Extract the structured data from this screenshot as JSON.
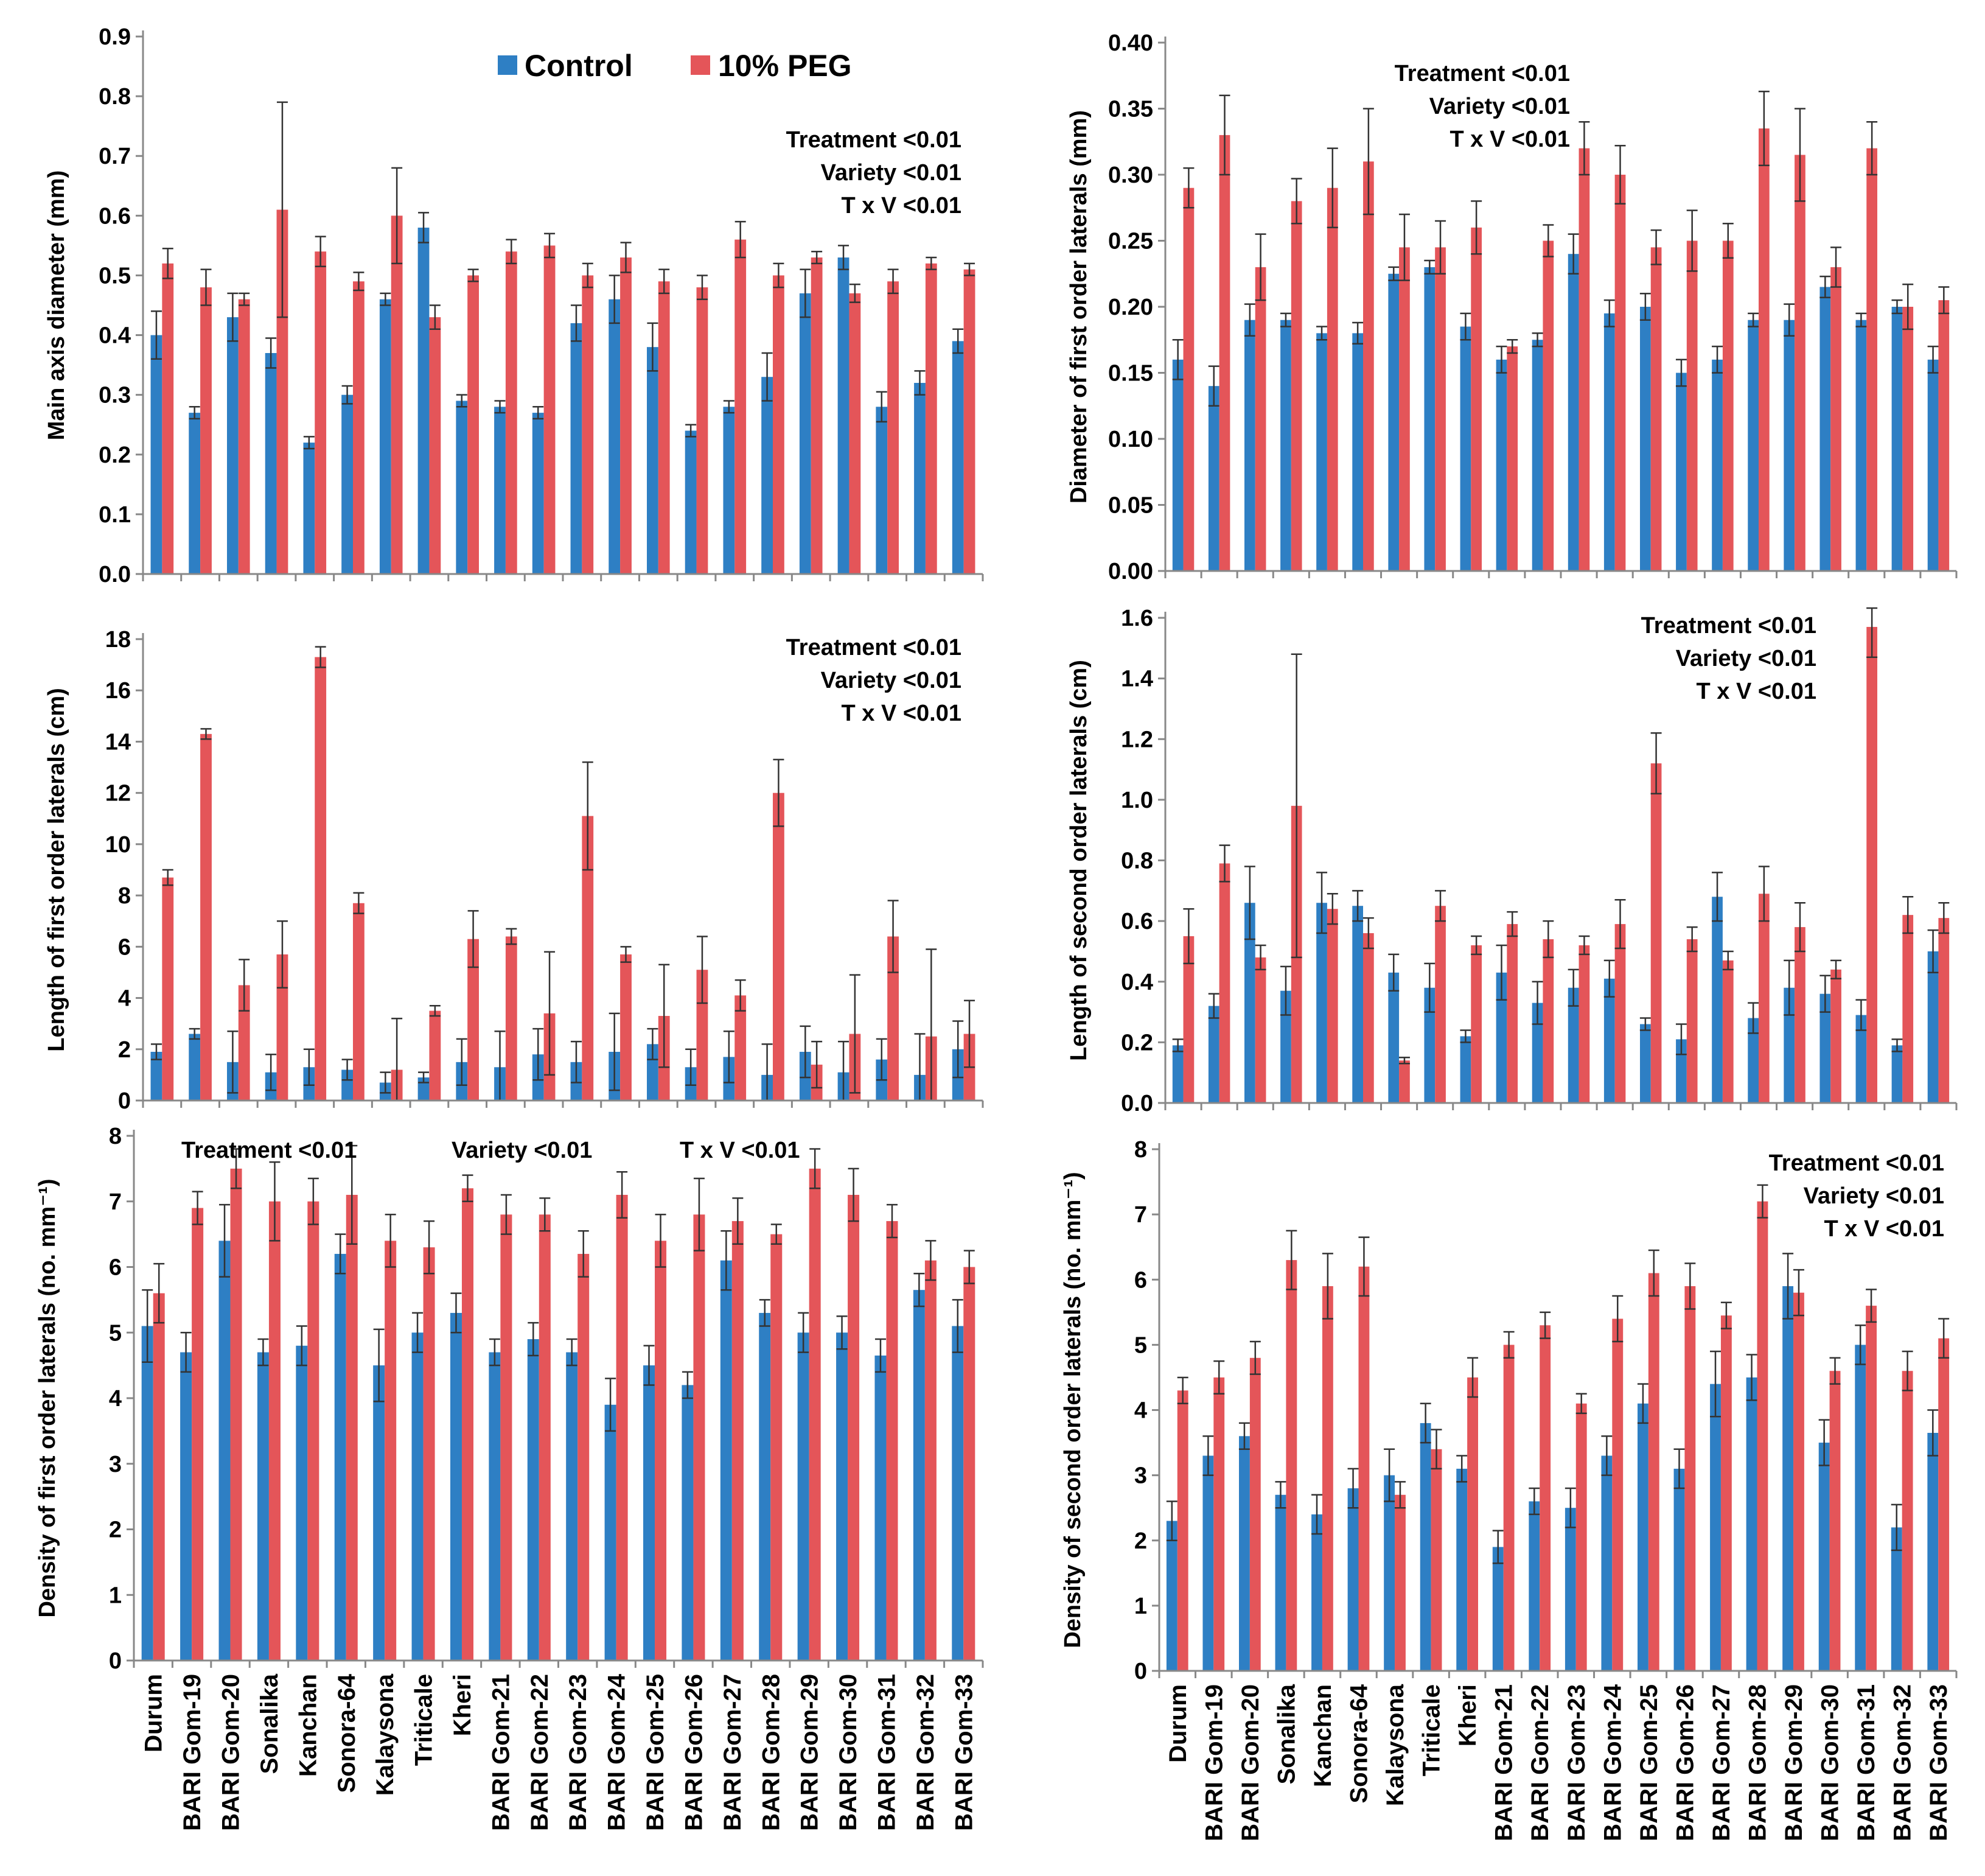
{
  "colors": {
    "control": "#2e7fc4",
    "peg": "#e45559",
    "axis": "#888888",
    "error": "#333333"
  },
  "legend": {
    "control": "Control",
    "peg": "10% PEG"
  },
  "chart_data": [
    {
      "type": "bar",
      "panel": "top-left",
      "ylabel": "Main axis diameter (mm)",
      "ylim": [
        0,
        0.9
      ],
      "yticks": [
        "0.0",
        "0.1",
        "0.2",
        "0.3",
        "0.4",
        "0.5",
        "0.6",
        "0.7",
        "0.8",
        "0.9"
      ],
      "categories": [
        "Durum",
        "BARI Gom-19",
        "BARI Gom-20",
        "Sonalika",
        "Kanchan",
        "Sonora-64",
        "Kalaysona",
        "Triticale",
        "Kheri",
        "BARI Gom-21",
        "BARI Gom-22",
        "BARI Gom-23",
        "BARI Gom-24",
        "BARI Gom-25",
        "BARI Gom-26",
        "BARI Gom-27",
        "BARI Gom-28",
        "BARI Gom-29",
        "BARI Gom-30",
        "BARI Gom-31",
        "BARI Gom-32",
        "BARI Gom-33"
      ],
      "stats": [
        "Treatment <0.01",
        "Variety <0.01",
        "T x V <0.01"
      ],
      "stats_position": "top-right",
      "series": [
        {
          "name": "Control",
          "values": [
            0.4,
            0.27,
            0.43,
            0.37,
            0.22,
            0.3,
            0.46,
            0.58,
            0.29,
            0.28,
            0.27,
            0.42,
            0.46,
            0.38,
            0.24,
            0.28,
            0.33,
            0.47,
            0.53,
            0.28,
            0.32,
            0.39
          ],
          "errors": [
            0.04,
            0.01,
            0.04,
            0.025,
            0.01,
            0.015,
            0.01,
            0.025,
            0.01,
            0.01,
            0.01,
            0.03,
            0.04,
            0.04,
            0.01,
            0.01,
            0.04,
            0.04,
            0.02,
            0.025,
            0.02,
            0.02
          ]
        },
        {
          "name": "10% PEG",
          "values": [
            0.52,
            0.48,
            0.46,
            0.61,
            0.54,
            0.49,
            0.6,
            0.43,
            0.5,
            0.54,
            0.55,
            0.5,
            0.53,
            0.49,
            0.48,
            0.56,
            0.5,
            0.53,
            0.47,
            0.49,
            0.52,
            0.51
          ],
          "errors": [
            0.025,
            0.03,
            0.01,
            0.18,
            0.025,
            0.015,
            0.08,
            0.02,
            0.01,
            0.02,
            0.02,
            0.02,
            0.025,
            0.02,
            0.02,
            0.03,
            0.02,
            0.01,
            0.015,
            0.02,
            0.01,
            0.01
          ]
        }
      ]
    },
    {
      "type": "bar",
      "panel": "top-right",
      "ylabel": "Diameter of first order laterals (mm)",
      "ylim": [
        0,
        0.4
      ],
      "yticks": [
        "0.00",
        "0.05",
        "0.10",
        "0.15",
        "0.20",
        "0.25",
        "0.30",
        "0.35",
        "0.40"
      ],
      "categories": [
        "Durum",
        "BARI Gom-19",
        "BARI Gom-20",
        "Sonalika",
        "Kanchan",
        "Sonora-64",
        "Kalaysona",
        "Triticale",
        "Kheri",
        "BARI Gom-21",
        "BARI Gom-22",
        "BARI Gom-23",
        "BARI Gom-24",
        "BARI Gom-25",
        "BARI Gom-26",
        "BARI Gom-27",
        "BARI Gom-28",
        "BARI Gom-29",
        "BARI Gom-30",
        "BARI Gom-31",
        "BARI Gom-32",
        "BARI Gom-33"
      ],
      "stats": [
        "Treatment <0.01",
        "Variety <0.01",
        "T x V <0.01"
      ],
      "stats_position": "top-center",
      "series": [
        {
          "name": "Control",
          "values": [
            0.16,
            0.14,
            0.19,
            0.19,
            0.18,
            0.18,
            0.225,
            0.23,
            0.185,
            0.16,
            0.175,
            0.24,
            0.195,
            0.2,
            0.15,
            0.16,
            0.19,
            0.19,
            0.215,
            0.19,
            0.2,
            0.16
          ],
          "errors": [
            0.015,
            0.015,
            0.012,
            0.005,
            0.005,
            0.008,
            0.005,
            0.005,
            0.01,
            0.01,
            0.005,
            0.015,
            0.01,
            0.01,
            0.01,
            0.01,
            0.005,
            0.012,
            0.008,
            0.005,
            0.005,
            0.01
          ]
        },
        {
          "name": "10% PEG",
          "values": [
            0.29,
            0.33,
            0.23,
            0.28,
            0.29,
            0.31,
            0.245,
            0.245,
            0.26,
            0.17,
            0.25,
            0.32,
            0.3,
            0.245,
            0.25,
            0.25,
            0.335,
            0.315,
            0.23,
            0.32,
            0.2,
            0.205
          ],
          "errors": [
            0.015,
            0.03,
            0.025,
            0.017,
            0.03,
            0.04,
            0.025,
            0.02,
            0.02,
            0.005,
            0.012,
            0.02,
            0.022,
            0.013,
            0.023,
            0.013,
            0.028,
            0.035,
            0.015,
            0.02,
            0.017,
            0.01
          ]
        }
      ]
    },
    {
      "type": "bar",
      "panel": "middle-left",
      "ylabel": "Length of first order laterals (cm)",
      "ylim": [
        0,
        18
      ],
      "yticks": [
        "0",
        "2",
        "4",
        "6",
        "8",
        "10",
        "12",
        "14",
        "16",
        "18"
      ],
      "categories": [
        "Durum",
        "BARI Gom-19",
        "BARI Gom-20",
        "Sonalika",
        "Kanchan",
        "Sonora-64",
        "Kalaysona",
        "Triticale",
        "Kheri",
        "BARI Gom-21",
        "BARI Gom-22",
        "BARI Gom-23",
        "BARI Gom-24",
        "BARI Gom-25",
        "BARI Gom-26",
        "BARI Gom-27",
        "BARI Gom-28",
        "BARI Gom-29",
        "BARI Gom-30",
        "BARI Gom-31",
        "BARI Gom-32",
        "BARI Gom-33"
      ],
      "stats": [
        "Treatment <0.01",
        "Variety <0.01",
        "T x V <0.01"
      ],
      "stats_position": "top-right",
      "series": [
        {
          "name": "Control",
          "values": [
            1.9,
            2.6,
            1.5,
            1.1,
            1.3,
            1.2,
            0.7,
            0.9,
            1.5,
            1.3,
            1.8,
            1.5,
            1.9,
            2.2,
            1.3,
            1.7,
            1.0,
            1.9,
            1.1,
            1.6,
            1.0,
            2.0
          ],
          "errors": [
            0.3,
            0.2,
            1.2,
            0.7,
            0.7,
            0.4,
            0.4,
            0.2,
            0.9,
            1.4,
            1.0,
            0.8,
            1.5,
            0.6,
            0.7,
            1.0,
            1.2,
            1.0,
            1.2,
            0.8,
            1.6,
            1.1
          ]
        },
        {
          "name": "10% PEG",
          "values": [
            8.7,
            14.3,
            4.5,
            5.7,
            17.3,
            7.7,
            1.2,
            3.5,
            6.3,
            6.4,
            3.4,
            11.1,
            5.7,
            3.3,
            5.1,
            4.1,
            12.0,
            1.4,
            2.6,
            6.4,
            2.5,
            2.6
          ],
          "errors": [
            0.3,
            0.2,
            1.0,
            1.3,
            0.4,
            0.4,
            2.0,
            0.2,
            1.1,
            0.3,
            2.4,
            2.1,
            0.3,
            2.0,
            1.3,
            0.6,
            1.3,
            0.9,
            2.3,
            1.4,
            3.4,
            1.3
          ]
        }
      ]
    },
    {
      "type": "bar",
      "panel": "middle-right",
      "ylabel": "Length of second order laterals (cm)",
      "ylim": [
        0,
        1.6
      ],
      "yticks": [
        "0.0",
        "0.2",
        "0.4",
        "0.6",
        "0.8",
        "1.0",
        "1.2",
        "1.4",
        "1.6"
      ],
      "categories": [
        "Durum",
        "BARI Gom-19",
        "BARI Gom-20",
        "Sonalika",
        "Kanchan",
        "Sonora-64",
        "Kalaysona",
        "Triticale",
        "Kheri",
        "BARI Gom-21",
        "BARI Gom-22",
        "BARI Gom-23",
        "BARI Gom-24",
        "BARI Gom-25",
        "BARI Gom-26",
        "BARI Gom-27",
        "BARI Gom-28",
        "BARI Gom-29",
        "BARI Gom-30",
        "BARI Gom-31",
        "BARI Gom-32",
        "BARI Gom-33"
      ],
      "stats": [
        "Treatment <0.01",
        "Variety <0.01",
        "T x V <0.01"
      ],
      "stats_position": "top-right",
      "series": [
        {
          "name": "Control",
          "values": [
            0.19,
            0.32,
            0.66,
            0.37,
            0.66,
            0.65,
            0.43,
            0.38,
            0.22,
            0.43,
            0.33,
            0.38,
            0.41,
            0.26,
            0.21,
            0.68,
            0.28,
            0.38,
            0.36,
            0.29,
            0.19,
            0.5
          ],
          "errors": [
            0.02,
            0.04,
            0.12,
            0.08,
            0.1,
            0.05,
            0.06,
            0.08,
            0.02,
            0.09,
            0.07,
            0.06,
            0.06,
            0.02,
            0.05,
            0.08,
            0.05,
            0.09,
            0.06,
            0.05,
            0.02,
            0.07
          ]
        },
        {
          "name": "10% PEG",
          "values": [
            0.55,
            0.79,
            0.48,
            0.98,
            0.64,
            0.56,
            0.14,
            0.65,
            0.52,
            0.59,
            0.54,
            0.52,
            0.59,
            1.12,
            0.54,
            0.47,
            0.69,
            0.58,
            0.44,
            1.57,
            0.62,
            0.61
          ],
          "errors": [
            0.09,
            0.06,
            0.04,
            0.5,
            0.05,
            0.05,
            0.01,
            0.05,
            0.03,
            0.04,
            0.06,
            0.03,
            0.08,
            0.1,
            0.04,
            0.03,
            0.09,
            0.08,
            0.03,
            0.1,
            0.06,
            0.05
          ]
        }
      ]
    },
    {
      "type": "bar",
      "panel": "bottom-left",
      "ylabel": "Density of first order laterals (no. mm⁻¹)",
      "ylim": [
        0,
        8
      ],
      "yticks": [
        "0",
        "1",
        "2",
        "3",
        "4",
        "5",
        "6",
        "7",
        "8"
      ],
      "categories": [
        "Durum",
        "BARI Gom-19",
        "BARI Gom-20",
        "Sonalika",
        "Kanchan",
        "Sonora-64",
        "Kalaysona",
        "Triticale",
        "Kheri",
        "BARI Gom-21",
        "BARI Gom-22",
        "BARI Gom-23",
        "BARI Gom-24",
        "BARI Gom-25",
        "BARI Gom-26",
        "BARI Gom-27",
        "BARI Gom-28",
        "BARI Gom-29",
        "BARI Gom-30",
        "BARI Gom-31",
        "BARI Gom-32",
        "BARI Gom-33"
      ],
      "stats": [
        "Treatment <0.01",
        "Variety <0.01",
        "T x V <0.01"
      ],
      "stats_position": "top-row",
      "series": [
        {
          "name": "Control",
          "values": [
            5.1,
            4.7,
            6.4,
            4.7,
            4.8,
            6.2,
            4.5,
            5.0,
            5.3,
            4.7,
            4.9,
            4.7,
            3.9,
            4.5,
            4.2,
            6.1,
            5.3,
            5.0,
            5.0,
            4.65,
            5.65,
            5.1
          ],
          "errors": [
            0.55,
            0.3,
            0.55,
            0.2,
            0.3,
            0.3,
            0.55,
            0.3,
            0.3,
            0.2,
            0.25,
            0.2,
            0.4,
            0.3,
            0.2,
            0.45,
            0.2,
            0.3,
            0.25,
            0.25,
            0.25,
            0.4
          ]
        },
        {
          "name": "10% PEG",
          "values": [
            5.6,
            6.9,
            7.5,
            7.0,
            7.0,
            7.1,
            6.4,
            6.3,
            7.2,
            6.8,
            6.8,
            6.2,
            7.1,
            6.4,
            6.8,
            6.7,
            6.5,
            7.5,
            7.1,
            6.7,
            6.1,
            6.0
          ],
          "errors": [
            0.45,
            0.25,
            0.3,
            0.6,
            0.35,
            0.75,
            0.4,
            0.4,
            0.2,
            0.3,
            0.25,
            0.35,
            0.35,
            0.4,
            0.55,
            0.35,
            0.15,
            0.3,
            0.4,
            0.25,
            0.3,
            0.25
          ]
        }
      ]
    },
    {
      "type": "bar",
      "panel": "bottom-right",
      "ylabel": "Density of second order laterals (no. mm⁻¹)",
      "ylim": [
        0,
        8
      ],
      "yticks": [
        "0",
        "1",
        "2",
        "3",
        "4",
        "5",
        "6",
        "7",
        "8"
      ],
      "categories": [
        "Durum",
        "BARI Gom-19",
        "BARI Gom-20",
        "Sonalika",
        "Kanchan",
        "Sonora-64",
        "Kalaysona",
        "Triticale",
        "Kheri",
        "BARI Gom-21",
        "BARI Gom-22",
        "BARI Gom-23",
        "BARI Gom-24",
        "BARI Gom-25",
        "BARI Gom-26",
        "BARI Gom-27",
        "BARI Gom-28",
        "BARI Gom-29",
        "BARI Gom-30",
        "BARI Gom-31",
        "BARI Gom-32",
        "BARI Gom-33"
      ],
      "stats": [
        "Treatment <0.01",
        "Variety <0.01",
        "T x V <0.01"
      ],
      "stats_position": "top-right",
      "series": [
        {
          "name": "Control",
          "values": [
            2.3,
            3.3,
            3.6,
            2.7,
            2.4,
            2.8,
            3.0,
            3.8,
            3.1,
            1.9,
            2.6,
            2.5,
            3.3,
            4.1,
            3.1,
            4.4,
            4.5,
            5.9,
            3.5,
            5.0,
            2.2,
            3.65
          ],
          "errors": [
            0.3,
            0.3,
            0.2,
            0.2,
            0.3,
            0.3,
            0.4,
            0.3,
            0.2,
            0.25,
            0.2,
            0.3,
            0.3,
            0.3,
            0.3,
            0.5,
            0.35,
            0.5,
            0.35,
            0.3,
            0.35,
            0.35
          ]
        },
        {
          "name": "10% PEG",
          "values": [
            4.3,
            4.5,
            4.8,
            6.3,
            5.9,
            6.2,
            2.7,
            3.4,
            4.5,
            5.0,
            5.3,
            4.1,
            5.4,
            6.1,
            5.9,
            5.45,
            7.2,
            5.8,
            4.6,
            5.6,
            4.6,
            5.1
          ],
          "errors": [
            0.2,
            0.25,
            0.25,
            0.45,
            0.5,
            0.45,
            0.2,
            0.3,
            0.3,
            0.2,
            0.2,
            0.15,
            0.35,
            0.35,
            0.35,
            0.2,
            0.25,
            0.35,
            0.2,
            0.25,
            0.3,
            0.3
          ]
        }
      ]
    }
  ]
}
